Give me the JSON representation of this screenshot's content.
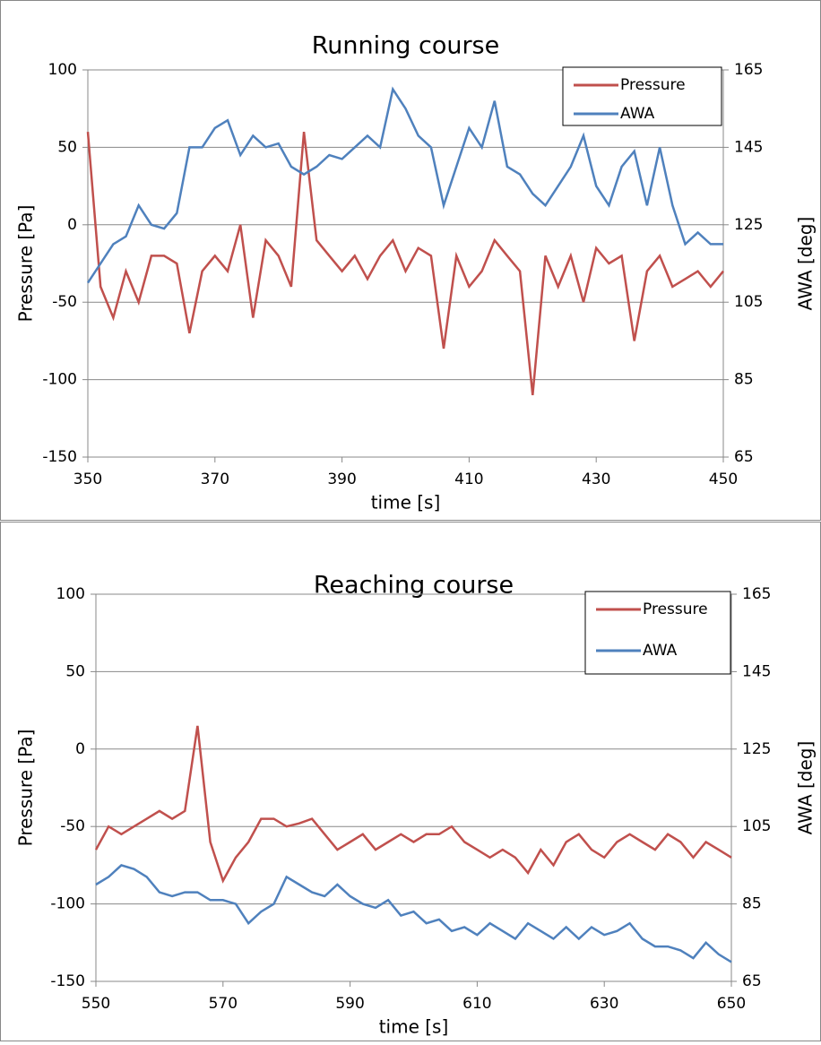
{
  "chart_data": [
    {
      "type": "line",
      "title": "Running course",
      "xlabel": "time [s]",
      "ylabel": "Pressure [Pa]",
      "y2label": "AWA [deg]",
      "x": [
        350,
        352,
        354,
        356,
        358,
        360,
        362,
        364,
        366,
        368,
        370,
        372,
        374,
        376,
        378,
        380,
        382,
        384,
        386,
        388,
        390,
        392,
        394,
        396,
        398,
        400,
        402,
        404,
        406,
        408,
        410,
        412,
        414,
        416,
        418,
        420,
        422,
        424,
        426,
        428,
        430,
        432,
        434,
        436,
        438,
        440,
        442,
        444,
        446,
        448,
        450
      ],
      "series": [
        {
          "name": "Pressure",
          "color": "#c0504d",
          "values": [
            60,
            -40,
            -60,
            -30,
            -50,
            -20,
            -20,
            -25,
            -70,
            -30,
            -20,
            -30,
            0,
            -60,
            -10,
            -20,
            -40,
            60,
            -10,
            -20,
            -30,
            -20,
            -35,
            -20,
            -10,
            -30,
            -15,
            -20,
            -80,
            -20,
            -40,
            -30,
            -10,
            -20,
            -30,
            -110,
            -20,
            -40,
            -20,
            -50,
            -15,
            -25,
            -20,
            -75,
            -30,
            -20,
            -40,
            -35,
            -30,
            -40,
            -30
          ]
        },
        {
          "name": "AWA",
          "color": "#4f81bd",
          "axis": "y2",
          "values": [
            110,
            115,
            120,
            122,
            130,
            125,
            124,
            128,
            145,
            145,
            150,
            152,
            143,
            148,
            145,
            146,
            140,
            138,
            140,
            143,
            142,
            145,
            148,
            145,
            160,
            155,
            148,
            145,
            130,
            140,
            150,
            145,
            157,
            140,
            138,
            133,
            130,
            135,
            140,
            148,
            135,
            130,
            140,
            144,
            130,
            145,
            130,
            120,
            123,
            120,
            120
          ]
        }
      ],
      "xlim": [
        350,
        450
      ],
      "xticks": [
        350,
        370,
        390,
        410,
        430,
        450
      ],
      "ylim": [
        -150,
        100
      ],
      "yticks": [
        -150,
        -100,
        -50,
        0,
        50,
        100
      ],
      "y2lim": [
        65,
        165
      ],
      "y2ticks": [
        65,
        85,
        105,
        125,
        145,
        165
      ],
      "grid": true,
      "legend": "upper right"
    },
    {
      "type": "line",
      "title": "Reaching course",
      "xlabel": "time [s]",
      "ylabel": "Pressure [Pa]",
      "y2label": "AWA [deg]",
      "x": [
        550,
        552,
        554,
        556,
        558,
        560,
        562,
        564,
        566,
        568,
        570,
        572,
        574,
        576,
        578,
        580,
        582,
        584,
        586,
        588,
        590,
        592,
        594,
        596,
        598,
        600,
        602,
        604,
        606,
        608,
        610,
        612,
        614,
        616,
        618,
        620,
        622,
        624,
        626,
        628,
        630,
        632,
        634,
        636,
        638,
        640,
        642,
        644,
        646,
        648,
        650
      ],
      "series": [
        {
          "name": "Pressure",
          "color": "#c0504d",
          "values": [
            -65,
            -50,
            -55,
            -50,
            -45,
            -40,
            -45,
            -40,
            15,
            -60,
            -85,
            -70,
            -60,
            -45,
            -45,
            -50,
            -48,
            -45,
            -55,
            -65,
            -60,
            -55,
            -65,
            -60,
            -55,
            -60,
            -55,
            -55,
            -50,
            -60,
            -65,
            -70,
            -65,
            -70,
            -80,
            -65,
            -75,
            -60,
            -55,
            -65,
            -70,
            -60,
            -55,
            -60,
            -65,
            -55,
            -60,
            -70,
            -60,
            -65,
            -70
          ]
        },
        {
          "name": "AWA",
          "color": "#4f81bd",
          "axis": "y2",
          "values": [
            90,
            92,
            95,
            94,
            92,
            88,
            87,
            88,
            88,
            86,
            86,
            85,
            80,
            83,
            85,
            92,
            90,
            88,
            87,
            90,
            87,
            85,
            84,
            86,
            82,
            83,
            80,
            81,
            78,
            79,
            77,
            80,
            78,
            76,
            80,
            78,
            76,
            79,
            76,
            79,
            77,
            78,
            80,
            76,
            74,
            74,
            73,
            71,
            75,
            72,
            70
          ]
        }
      ],
      "xlim": [
        550,
        650
      ],
      "xticks": [
        550,
        570,
        590,
        610,
        630,
        650
      ],
      "ylim": [
        -150,
        100
      ],
      "yticks": [
        -150,
        -100,
        -50,
        0,
        50,
        100
      ],
      "y2lim": [
        65,
        165
      ],
      "y2ticks": [
        65,
        85,
        105,
        125,
        145,
        165
      ],
      "grid": true,
      "legend": "upper right"
    }
  ]
}
